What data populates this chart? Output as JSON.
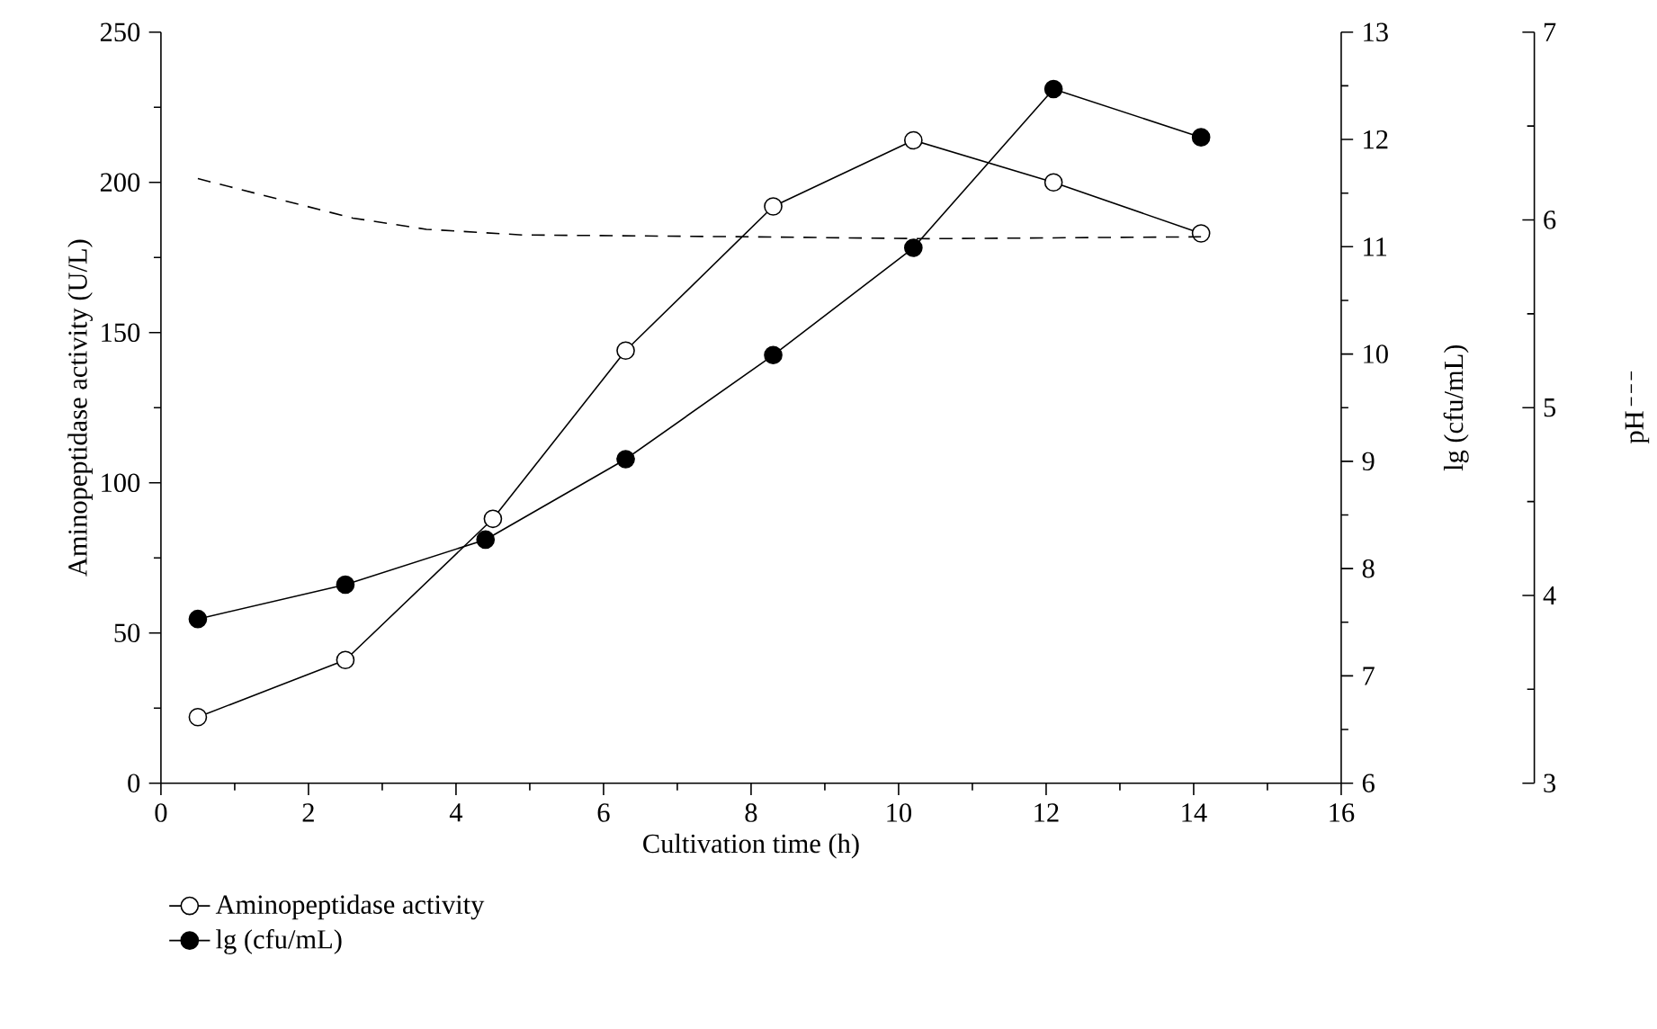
{
  "chart_data": {
    "type": "line",
    "xlabel": "Cultivation time (h)",
    "ylabel": "Aminopeptidase activity (U/L)",
    "y2label": "lg (cfu/mL)",
    "y3label": "pH",
    "xlim": [
      0,
      16
    ],
    "xticks": [
      0,
      2,
      4,
      6,
      8,
      10,
      12,
      14,
      16
    ],
    "ylim": [
      0,
      250
    ],
    "yticks": [
      0,
      50,
      100,
      150,
      200,
      250
    ],
    "y2lim": [
      6,
      13
    ],
    "y2ticks": [
      6,
      7,
      8,
      9,
      10,
      11,
      12,
      13
    ],
    "y3lim": [
      3,
      7
    ],
    "y3ticks": [
      3,
      4,
      5,
      6,
      7
    ],
    "grid": false,
    "legend": "bottom left",
    "series": [
      {
        "name": "Aminopeptidase activity",
        "color": "#ffffff",
        "marker": "circle",
        "line_style": "solid",
        "x": [
          0.5,
          2.5,
          4.5,
          6.3,
          8.3,
          10.2,
          12.1,
          14.1
        ],
        "values": [
          22,
          41,
          88,
          144,
          192,
          214,
          200,
          183
        ]
      },
      {
        "name": "lg (cfu/mL)",
        "color": "#000000",
        "marker": "circle",
        "line_style": "solid",
        "axis": "y2",
        "x": [
          0.5,
          2.5,
          4.4,
          6.3,
          8.3,
          10.2,
          12.1,
          14.1
        ],
        "values": [
          7.53,
          7.85,
          8.27,
          9.02,
          9.99,
          10.99,
          12.47,
          12.02
        ]
      },
      {
        "color": "#000000",
        "marker": "none",
        "line_style": "dashed",
        "axis": "y3",
        "x": [
          0.5,
          2.6,
          3.6,
          4.9,
          8.0,
          10.4,
          14.1
        ],
        "values": [
          6.22,
          6.01,
          5.95,
          5.92,
          5.91,
          5.9,
          5.91
        ]
      }
    ]
  }
}
